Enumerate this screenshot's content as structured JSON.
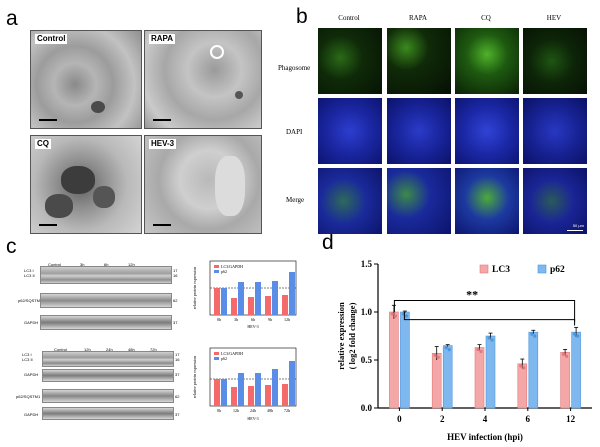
{
  "panels": {
    "a": "a",
    "b": "b",
    "c": "c",
    "d": "d"
  },
  "panel_a": {
    "tiles": [
      "Control",
      "RAPA",
      "CQ",
      "HEV-3"
    ]
  },
  "panel_b": {
    "columns": [
      "Control",
      "RAPA",
      "CQ",
      "HEV"
    ],
    "rows": [
      "Phagosome",
      "DAPI",
      "Merge"
    ],
    "scalebar": "50 μm"
  },
  "panel_c": {
    "blot1": {
      "lanes": [
        "Control",
        "3h",
        "6h",
        "12h"
      ],
      "rows": [
        "LC3 I\nLC3 II",
        "p62/SQSTM1",
        "GAPDH"
      ],
      "kda": [
        "17\n16",
        "62",
        "37"
      ]
    },
    "blot2": {
      "lanes": [
        "Control",
        "12h",
        "24h",
        "48h",
        "72h"
      ],
      "rows": [
        "LC3 I\nLC3 II",
        "GAPDH",
        "p62/SQSTM1",
        "GAPDH"
      ],
      "kda": [
        "17\n16",
        "37",
        "62",
        "37"
      ]
    },
    "bar1": {
      "legend": [
        "LC3/GAPDH",
        "p62"
      ],
      "ylabel": "relative protein expression",
      "xlabel": "HEV-3",
      "x": [
        "0h",
        "3h",
        "6h",
        "9h",
        "12h"
      ]
    },
    "bar2": {
      "legend": [
        "LC3/GAPDH",
        "p62"
      ],
      "ylabel": "relative protein expression",
      "xlabel": "HEV-3",
      "x": [
        "0h",
        "12h",
        "24h",
        "48h",
        "72h"
      ]
    }
  },
  "chart_data": {
    "type": "bar",
    "categories": [
      "0",
      "2",
      "4",
      "6",
      "12"
    ],
    "series": [
      {
        "name": "LC3",
        "values": [
          1.0,
          0.57,
          0.63,
          0.46,
          0.58
        ],
        "errors": [
          0.07,
          0.07,
          0.03,
          0.05,
          0.03
        ]
      },
      {
        "name": "p62",
        "values": [
          1.0,
          0.65,
          0.75,
          0.79,
          0.79
        ],
        "errors": [
          0.01,
          0.01,
          0.03,
          0.02,
          0.05
        ]
      }
    ],
    "xlabel": "HEV infection (hpi)",
    "ylabel": "relative expression\n( log2 fold change)",
    "ylim": [
      0.0,
      1.5
    ],
    "yticks": [
      "0.0",
      "0.5",
      "1.0",
      "1.5"
    ],
    "significance": "**",
    "legend_position": "top-right",
    "colors": {
      "LC3": "#F4A7A7",
      "p62": "#7FB8EE"
    }
  }
}
